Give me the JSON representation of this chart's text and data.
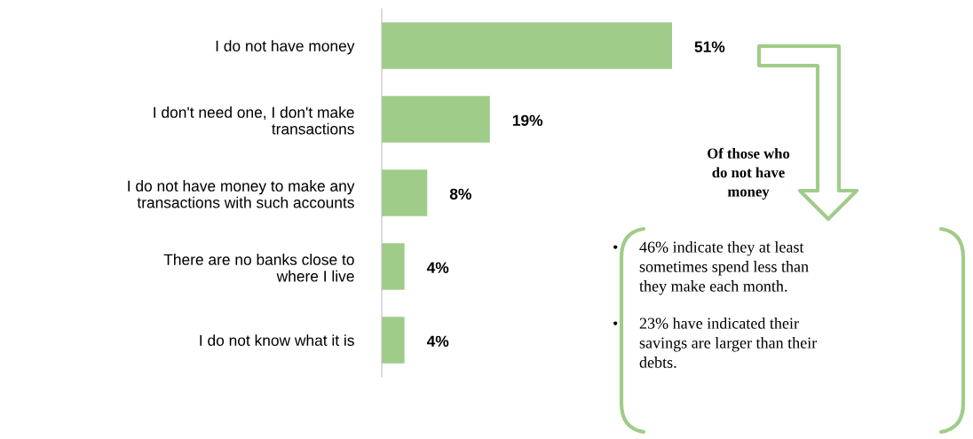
{
  "chart_data": {
    "type": "bar",
    "orientation": "horizontal",
    "categories": [
      "I do not have money",
      "I don't need one, I don't make\ntransactions",
      "I do not have money to make any\ntransactions with such accounts",
      "There are no banks close to\nwhere I live",
      "I do not know what it is"
    ],
    "values": [
      51,
      19,
      8,
      4,
      4
    ],
    "value_labels": [
      "51%",
      "19%",
      "8%",
      "4%",
      "4%"
    ],
    "color": "#a0cc8a",
    "annotations": [
      "Of those who\ndo not have\nmoney",
      "•46% indicate they at least\nsometimes spend less than\nthey make each month.",
      "•23% have indicated their\nsavings are larger than their\ndebts."
    ],
    "legend": false,
    "grid": false
  }
}
